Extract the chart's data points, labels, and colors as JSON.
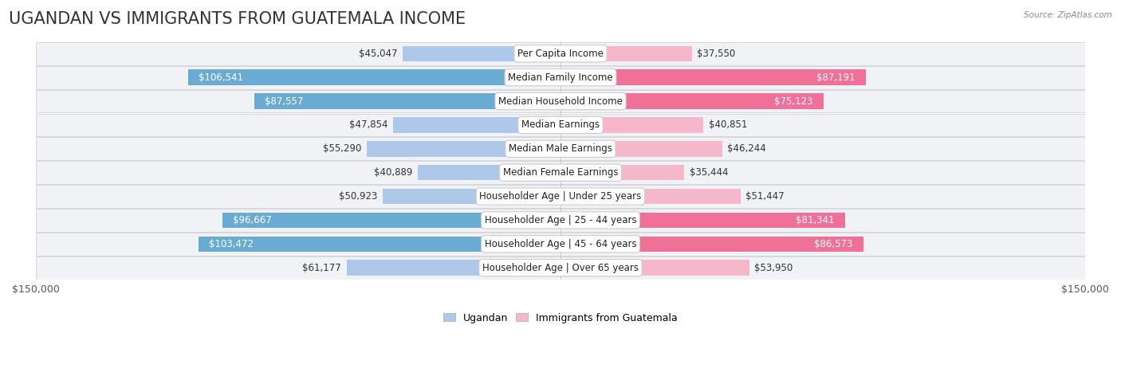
{
  "title": "UGANDAN VS IMMIGRANTS FROM GUATEMALA INCOME",
  "source": "Source: ZipAtlas.com",
  "categories": [
    "Per Capita Income",
    "Median Family Income",
    "Median Household Income",
    "Median Earnings",
    "Median Male Earnings",
    "Median Female Earnings",
    "Householder Age | Under 25 years",
    "Householder Age | 25 - 44 years",
    "Householder Age | 45 - 64 years",
    "Householder Age | Over 65 years"
  ],
  "ugandan_values": [
    45047,
    106541,
    87557,
    47854,
    55290,
    40889,
    50923,
    96667,
    103472,
    61177
  ],
  "guatemala_values": [
    37550,
    87191,
    75123,
    40851,
    46244,
    35444,
    51447,
    81341,
    86573,
    53950
  ],
  "ugandan_color_light": "#adc8e8",
  "ugandan_color_dark": "#6aabd4",
  "guatemala_color_light": "#f5b8cb",
  "guatemala_color_dark": "#f07098",
  "row_bg_color": "#f0f2f5",
  "row_edge_color": "#d5d8de",
  "max_value": 150000,
  "x_axis_label_left": "$150,000",
  "x_axis_label_right": "$150,000",
  "legend_ugandan": "Ugandan",
  "legend_guatemala": "Immigrants from Guatemala",
  "title_fontsize": 15,
  "axis_fontsize": 9,
  "bar_label_fontsize": 8.5,
  "category_fontsize": 8.5,
  "white_label_threshold": 75000
}
